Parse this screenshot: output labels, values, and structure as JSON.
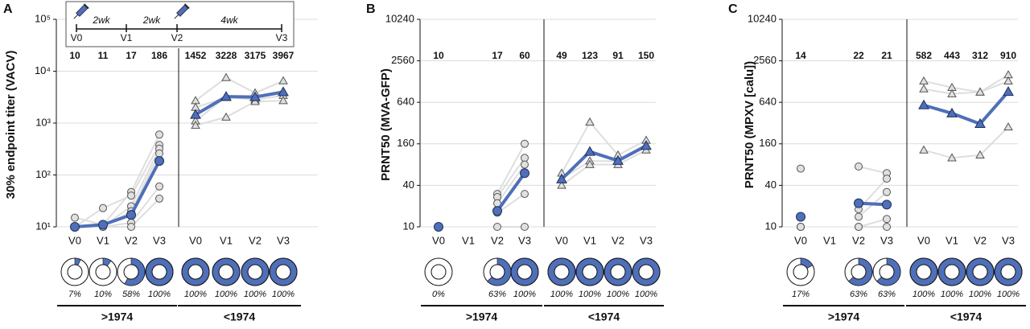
{
  "chart_data": [
    {
      "type": "line",
      "label": "A",
      "ylabel": "30% endpoint titer (VACV)",
      "log_scale": true,
      "grid": true,
      "ylim": [
        10,
        100000
      ],
      "yticks": [
        {
          "value": 10,
          "label": "10¹"
        },
        {
          "value": 100,
          "label": "10²"
        },
        {
          "value": 1000,
          "label": "10³"
        },
        {
          "value": 10000,
          "label": "10⁴"
        },
        {
          "value": 100000,
          "label": "10⁵"
        }
      ],
      "timeline": {
        "visits": [
          "V0",
          "V1",
          "V2",
          "V3"
        ],
        "intervals": [
          "2wk",
          "2wk",
          "4wk"
        ]
      },
      "groups": [
        {
          "name": ">1974",
          "marker": "circle",
          "color": "#4f6fb8",
          "categories": [
            "V0",
            "V1",
            "V2",
            "V3"
          ],
          "values": [
            10,
            11,
            17,
            186
          ],
          "subjects": [
            [
              15,
              11,
              47,
              600
            ],
            [
              10,
              23,
              40,
              380
            ],
            [
              10,
              10,
              25,
              320
            ],
            [
              10,
              10,
              20,
              260
            ],
            [
              10,
              10,
              12,
              60
            ],
            [
              10,
              10,
              10,
              35
            ]
          ],
          "donut_values": [
            7,
            10,
            58,
            100
          ],
          "donut_value_labels": [
            "7%",
            "10%",
            "58%",
            "100%"
          ]
        },
        {
          "name": "<1974",
          "marker": "triangle",
          "color": "#4f6fb8",
          "categories": [
            "V0",
            "V1",
            "V2",
            "V3"
          ],
          "values": [
            1452,
            3228,
            3175,
            3967
          ],
          "subjects": [
            [
              2700,
              7500,
              3800,
              6500
            ],
            [
              2000,
              3100,
              3200,
              4000
            ],
            [
              1100,
              3200,
              2800,
              3400
            ],
            [
              900,
              1300,
              2600,
              2700
            ]
          ],
          "donut_values": [
            100,
            100,
            100,
            100
          ],
          "donut_value_labels": [
            "100%",
            "100%",
            "100%",
            "100%"
          ]
        }
      ]
    },
    {
      "type": "line",
      "label": "B",
      "ylabel": "PRNT50 (MVA-GFP)",
      "log_scale": true,
      "grid": true,
      "ylim": [
        10,
        10240
      ],
      "yticks": [
        10,
        40,
        160,
        640,
        2560,
        10240
      ],
      "groups": [
        {
          "name": ">1974",
          "marker": "circle",
          "color": "#4f6fb8",
          "categories": [
            "V0",
            "V1",
            "V2",
            "V3"
          ],
          "values": [
            10,
            null,
            17,
            60
          ],
          "subjects": [
            [
              10,
              null,
              30,
              160
            ],
            [
              10,
              null,
              27,
              100
            ],
            [
              10,
              null,
              22,
              80
            ],
            [
              10,
              null,
              16,
              30
            ],
            [
              10,
              null,
              10,
              10
            ]
          ],
          "donut_values": [
            0,
            null,
            63,
            100
          ],
          "donut_value_labels": [
            "0%",
            null,
            "63%",
            "100%"
          ]
        },
        {
          "name": "<1974",
          "marker": "triangle",
          "color": "#4f6fb8",
          "categories": [
            "V0",
            "V1",
            "V2",
            "V3"
          ],
          "values": [
            49,
            123,
            91,
            150
          ],
          "subjects": [
            [
              60,
              330,
              110,
              180
            ],
            [
              50,
              90,
              90,
              150
            ],
            [
              40,
              80,
              80,
              130
            ]
          ],
          "donut_values": [
            100,
            100,
            100,
            100
          ],
          "donut_value_labels": [
            "100%",
            "100%",
            "100%",
            "100%"
          ]
        }
      ]
    },
    {
      "type": "line",
      "label": "C",
      "ylabel": "PRNT50 (MPXV [calu])",
      "log_scale": true,
      "grid": true,
      "ylim": [
        10,
        10240
      ],
      "yticks": [
        10,
        40,
        160,
        640,
        2560,
        10240
      ],
      "groups": [
        {
          "name": ">1974",
          "marker": "circle",
          "color": "#4f6fb8",
          "categories": [
            "V0",
            "V1",
            "V2",
            "V3"
          ],
          "values": [
            14,
            null,
            22,
            21
          ],
          "subjects": [
            [
              70,
              null,
              75,
              60
            ],
            [
              10,
              null,
              18,
              50
            ],
            [
              10,
              null,
              14,
              32
            ],
            [
              10,
              null,
              10,
              13
            ],
            [
              10,
              null,
              10,
              10
            ]
          ],
          "donut_values": [
            17,
            null,
            63,
            63
          ],
          "donut_value_labels": [
            "17%",
            null,
            "63%",
            "63%"
          ]
        },
        {
          "name": "<1974",
          "marker": "triangle",
          "color": "#4f6fb8",
          "categories": [
            "V0",
            "V1",
            "V2",
            "V3"
          ],
          "values": [
            582,
            443,
            312,
            910
          ],
          "subjects": [
            [
              1300,
              1050,
              900,
              1600
            ],
            [
              1000,
              850,
              900,
              1300
            ],
            [
              130,
              100,
              110,
              280
            ]
          ],
          "donut_values": [
            100,
            100,
            100,
            100
          ],
          "donut_value_labels": [
            "100%",
            "100%",
            "100%",
            "100%"
          ]
        }
      ]
    }
  ]
}
